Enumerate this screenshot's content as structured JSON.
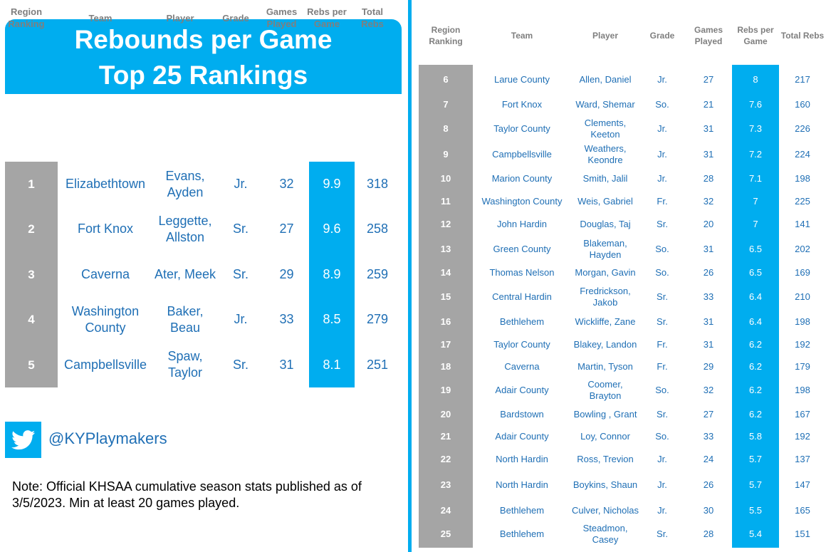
{
  "title": {
    "line1": "Rebounds per Game",
    "line2": "Top 25 Rankings"
  },
  "headers": {
    "rank": "Region Ranking",
    "team": "Team",
    "player": "Player",
    "grade": "Grade",
    "games": "Games Played",
    "rpg": "Rebs per Game",
    "total": "Total Rebs"
  },
  "top5": [
    {
      "rank": "1",
      "team": "Elizabethtown",
      "player": "Evans, Ayden",
      "grade": "Jr.",
      "games": "32",
      "rpg": "9.9",
      "total": "318"
    },
    {
      "rank": "2",
      "team": "Fort Knox",
      "player": "Leggette, Allston",
      "grade": "Sr.",
      "games": "27",
      "rpg": "9.6",
      "total": "258"
    },
    {
      "rank": "3",
      "team": "Caverna",
      "player": "Ater, Meek",
      "grade": "Sr.",
      "games": "29",
      "rpg": "8.9",
      "total": "259"
    },
    {
      "rank": "4",
      "team": "Washington County",
      "player": "Baker, Beau",
      "grade": "Jr.",
      "games": "33",
      "rpg": "8.5",
      "total": "279"
    },
    {
      "rank": "5",
      "team": "Campbellsville",
      "player": "Spaw, Taylor",
      "grade": "Sr.",
      "games": "31",
      "rpg": "8.1",
      "total": "251"
    }
  ],
  "rest": [
    {
      "rank": "6",
      "team": "Larue County",
      "player": "Allen, Daniel",
      "grade": "Jr.",
      "games": "27",
      "rpg": "8",
      "total": "217"
    },
    {
      "rank": "7",
      "team": "Fort Knox",
      "player": "Ward, Shemar",
      "grade": "So.",
      "games": "21",
      "rpg": "7.6",
      "total": "160"
    },
    {
      "rank": "8",
      "team": "Taylor County",
      "player": "Clements, Keeton",
      "grade": "Jr.",
      "games": "31",
      "rpg": "7.3",
      "total": "226"
    },
    {
      "rank": "9",
      "team": "Campbellsville",
      "player": "Weathers, Keondre",
      "grade": "Jr.",
      "games": "31",
      "rpg": "7.2",
      "total": "224"
    },
    {
      "rank": "10",
      "team": "Marion County",
      "player": "Smith, Jalil",
      "grade": "Jr.",
      "games": "28",
      "rpg": "7.1",
      "total": "198"
    },
    {
      "rank": "11",
      "team": "Washington County",
      "player": "Weis, Gabriel",
      "grade": "Fr.",
      "games": "32",
      "rpg": "7",
      "total": "225"
    },
    {
      "rank": "12",
      "team": "John Hardin",
      "player": "Douglas, Taj",
      "grade": "Sr.",
      "games": "20",
      "rpg": "7",
      "total": "141"
    },
    {
      "rank": "13",
      "team": "Green County",
      "player": "Blakeman, Hayden",
      "grade": "So.",
      "games": "31",
      "rpg": "6.5",
      "total": "202"
    },
    {
      "rank": "14",
      "team": "Thomas Nelson",
      "player": "Morgan, Gavin",
      "grade": "So.",
      "games": "26",
      "rpg": "6.5",
      "total": "169"
    },
    {
      "rank": "15",
      "team": "Central Hardin",
      "player": "Fredrickson, Jakob",
      "grade": "Sr.",
      "games": "33",
      "rpg": "6.4",
      "total": "210"
    },
    {
      "rank": "16",
      "team": "Bethlehem",
      "player": "Wickliffe, Zane",
      "grade": "Sr.",
      "games": "31",
      "rpg": "6.4",
      "total": "198"
    },
    {
      "rank": "17",
      "team": "Taylor County",
      "player": "Blakey, Landon",
      "grade": "Fr.",
      "games": "31",
      "rpg": "6.2",
      "total": "192"
    },
    {
      "rank": "18",
      "team": "Caverna",
      "player": "Martin, Tyson",
      "grade": "Fr.",
      "games": "29",
      "rpg": "6.2",
      "total": "179"
    },
    {
      "rank": "19",
      "team": "Adair County",
      "player": "Coomer, Brayton",
      "grade": "So.",
      "games": "32",
      "rpg": "6.2",
      "total": "198"
    },
    {
      "rank": "20",
      "team": "Bardstown",
      "player": "Bowling , Grant",
      "grade": "Sr.",
      "games": "27",
      "rpg": "6.2",
      "total": "167"
    },
    {
      "rank": "21",
      "team": "Adair County",
      "player": "Loy, Connor",
      "grade": "So.",
      "games": "33",
      "rpg": "5.8",
      "total": "192"
    },
    {
      "rank": "22",
      "team": "North Hardin",
      "player": "Ross, Trevion",
      "grade": "Jr.",
      "games": "24",
      "rpg": "5.7",
      "total": "137"
    },
    {
      "rank": "23",
      "team": "North Hardin",
      "player": "Boykins, Shaun",
      "grade": "Jr.",
      "games": "26",
      "rpg": "5.7",
      "total": "147"
    },
    {
      "rank": "24",
      "team": "Bethlehem",
      "player": "Culver, Nicholas",
      "grade": "Jr.",
      "games": "30",
      "rpg": "5.5",
      "total": "165"
    },
    {
      "rank": "25",
      "team": "Bethlehem",
      "player": "Steadmon, Casey",
      "grade": "Sr.",
      "games": "28",
      "rpg": "5.4",
      "total": "151"
    }
  ],
  "social": {
    "icon": "twitter-bird-icon",
    "handle": "@KYPlaymakers"
  },
  "note": "Note: Official KHSAA cumulative season stats published as of 3/5/2023. Min at least 20 games played.",
  "colors": {
    "accent": "#00adef",
    "rank_bg": "#a5a5a5",
    "text": "#1f6fb5",
    "header_text": "#7f7f7f"
  }
}
